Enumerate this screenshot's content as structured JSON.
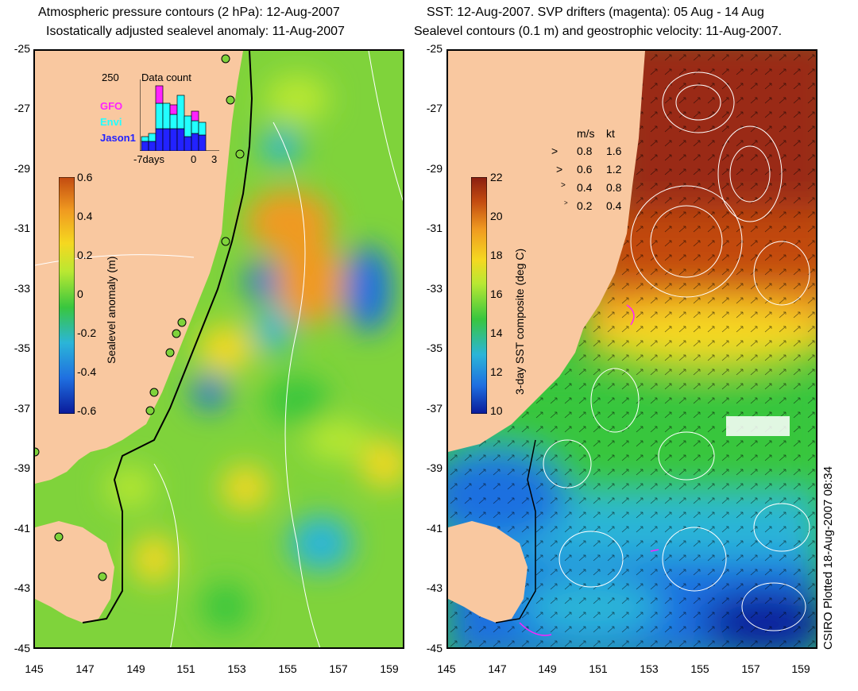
{
  "left": {
    "title_line1": "Atmospheric pressure contours (2 hPa): 12-Aug-2007",
    "title_line2": "Isostatically adjusted sealevel anomaly: 11-Aug-2007",
    "colorbar_label": "Sealevel anomaly (m)",
    "colorbar_ticks": [
      "0.6",
      "0.4",
      "0.2",
      "0",
      "-0.2",
      "-0.4",
      "-0.6"
    ],
    "inset": {
      "count_max": "250",
      "title": "Data count",
      "legend": [
        "GFO",
        "Envi",
        "Jason1"
      ],
      "x_labels": [
        "-7days",
        "0",
        "3"
      ]
    }
  },
  "right": {
    "title_line1": "SST: 12-Aug-2007. SVP drifters (magenta): 05 Aug - 14 Aug",
    "title_line2": "Sealevel contours (0.1 m) and geostrophic velocity: 11-Aug-2007.",
    "colorbar_label": "3-day SST composite (deg C)",
    "colorbar_ticks": [
      "22",
      "20",
      "18",
      "16",
      "14",
      "12",
      "10"
    ],
    "speed_legend": {
      "header_ms": "m/s",
      "header_kt": "kt",
      "rows": [
        {
          "ms": "0.8",
          "kt": "1.6"
        },
        {
          "ms": "0.6",
          "kt": "1.2"
        },
        {
          "ms": "0.4",
          "kt": "0.8"
        },
        {
          "ms": "0.2",
          "kt": "0.4"
        }
      ]
    }
  },
  "lat_labels": [
    "-25",
    "-27",
    "-29",
    "-31",
    "-33",
    "-35",
    "-37",
    "-39",
    "-41",
    "-43",
    "-45"
  ],
  "lon_labels": [
    "145",
    "147",
    "149",
    "151",
    "153",
    "155",
    "157",
    "159"
  ],
  "footer": "CSIRO Plotted 18-Aug-2007 08:34",
  "colors": {
    "land": "#f9c8a0",
    "sla_ramp": [
      "#0a1a9a",
      "#1f6fe0",
      "#2bb5d8",
      "#39c63e",
      "#b9e832",
      "#f5d820",
      "#f09a20",
      "#c24a10"
    ],
    "sst_ramp": [
      "#0a1a9a",
      "#1f6fe0",
      "#2bb5d8",
      "#39c63e",
      "#b9e832",
      "#f5d820",
      "#f09a20",
      "#c24a10",
      "#8a1e10"
    ],
    "gfo": "#ff22ff",
    "envi": "#22ffff",
    "jason1": "#2222ff"
  }
}
